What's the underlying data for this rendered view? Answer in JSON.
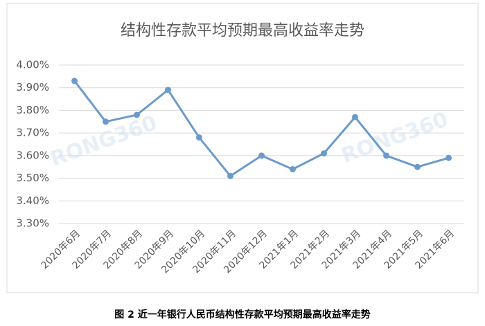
{
  "chart_data": {
    "type": "line",
    "title": "结构性存款平均预期最高收益率走势",
    "caption": "图 2  近一年银行人民币结构性存款平均预期最高收益率走势",
    "watermark": "RONG360",
    "categories": [
      "2020年6月",
      "2020年7月",
      "2020年8月",
      "2020年9月",
      "2020年10月",
      "2020年11月",
      "2020年12月",
      "2021年1月",
      "2021年2月",
      "2021年3月",
      "2021年4月",
      "2021年5月",
      "2021年6月"
    ],
    "values": [
      3.93,
      3.75,
      3.78,
      3.89,
      3.68,
      3.51,
      3.6,
      3.54,
      3.61,
      3.77,
      3.6,
      3.55,
      3.59
    ],
    "color": "#6b9acb",
    "ylim": [
      3.3,
      4.0
    ],
    "yticks": [
      {
        "value": 3.3,
        "label": "3.30%"
      },
      {
        "value": 3.4,
        "label": "3.40%"
      },
      {
        "value": 3.5,
        "label": "3.50%"
      },
      {
        "value": 3.6,
        "label": "3.60%"
      },
      {
        "value": 3.7,
        "label": "3.70%"
      },
      {
        "value": 3.8,
        "label": "3.80%"
      },
      {
        "value": 3.9,
        "label": "3.90%"
      },
      {
        "value": 4.0,
        "label": "4.00%"
      }
    ],
    "grid": true
  }
}
